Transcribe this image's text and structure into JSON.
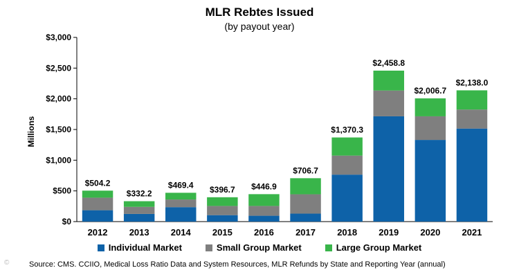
{
  "chart_data": {
    "type": "bar",
    "stacked": true,
    "title": "MLR Rebtes Issued",
    "subtitle": "(by payout year)",
    "xlabel": "",
    "ylabel": "Millions",
    "ylim": [
      0,
      3000
    ],
    "yticks": [
      0,
      500,
      1000,
      1500,
      2000,
      2500,
      3000
    ],
    "ytick_labels": [
      "$0",
      "$500",
      "$1,000",
      "$1,500",
      "$2,000",
      "$2,500",
      "$3,000"
    ],
    "grid": false,
    "legend_position": "bottom",
    "categories": [
      "2012",
      "2013",
      "2014",
      "2015",
      "2016",
      "2017",
      "2018",
      "2019",
      "2020",
      "2021"
    ],
    "series": [
      {
        "name": "Individual Market",
        "color": "#0e62a8",
        "values": [
          185,
          125,
          235,
          105,
          95,
          130,
          765,
          1715,
          1330,
          1515
        ]
      },
      {
        "name": "Small Group Market",
        "color": "#7f7f7f",
        "values": [
          205,
          115,
          125,
          150,
          160,
          315,
          310,
          420,
          385,
          310
        ]
      },
      {
        "name": "Large Group Market",
        "color": "#39b54a",
        "values": [
          114.2,
          92.2,
          109.4,
          141.7,
          191.9,
          261.7,
          295.3,
          323.8,
          291.7,
          313.0
        ]
      }
    ],
    "totals": [
      504.2,
      332.2,
      469.4,
      396.7,
      446.9,
      706.7,
      1370.3,
      2458.8,
      2006.7,
      2138.0
    ],
    "total_labels": [
      "$504.2",
      "$332.2",
      "$469.4",
      "$396.7",
      "$446.9",
      "$706.7",
      "$1,370.3",
      "$2,458.8",
      "$2,006.7",
      "$2,138.0"
    ]
  },
  "source_text": "Source: CMS. CCIIO, Medical Loss Ratio Data and System Resources, MLR Refunds by State and Reporting Year (annual)",
  "watermark_text": "©"
}
